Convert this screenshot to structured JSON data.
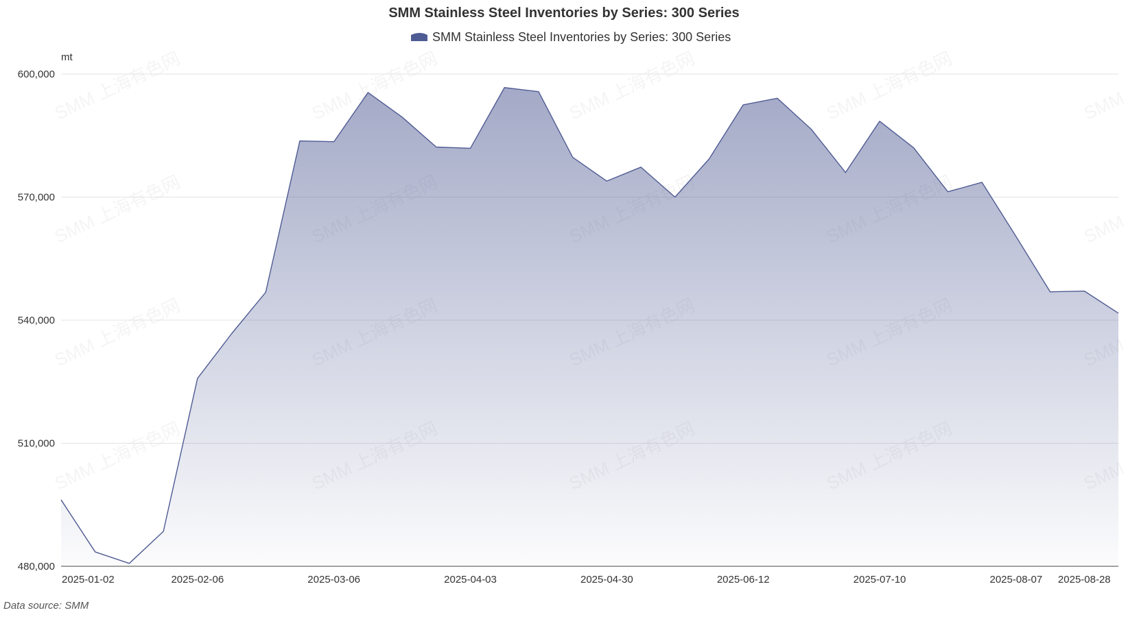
{
  "chart_data": {
    "type": "area",
    "title": "SMM Stainless Steel Inventories by Series: 300 Series",
    "legend": {
      "position": "top-center",
      "entries": [
        "SMM Stainless Steel Inventories by Series: 300 Series"
      ]
    },
    "ylabel": "mt",
    "xlabel": "",
    "ylim": [
      480000,
      600000
    ],
    "yticks": [
      480000,
      510000,
      540000,
      570000,
      600000
    ],
    "ytick_labels": [
      "480,000",
      "510,000",
      "540,000",
      "570,000",
      "600,000"
    ],
    "xtick_labels": [
      "2025-01-02",
      "2025-02-06",
      "2025-03-06",
      "2025-04-03",
      "2025-04-30",
      "2025-06-12",
      "2025-07-10",
      "2025-08-07",
      "2025-08-28"
    ],
    "xtick_indices": [
      0,
      4,
      8,
      12,
      16,
      20,
      24,
      28,
      30
    ],
    "grid": true,
    "series": [
      {
        "name": "SMM Stainless Steel Inventories by Series: 300 Series",
        "color": "#4f5b93",
        "values": [
          496200,
          483500,
          480700,
          488500,
          525800,
          536700,
          546800,
          583700,
          583500,
          595500,
          589500,
          582200,
          581900,
          596700,
          595700,
          579700,
          573900,
          577300,
          570000,
          579300,
          592500,
          594100,
          586500,
          576000,
          588500,
          582000,
          571300,
          573600,
          560400,
          546900,
          547100,
          541700
        ]
      }
    ],
    "watermark": "SMM 上海有色网",
    "source": "Data source:  SMM"
  }
}
